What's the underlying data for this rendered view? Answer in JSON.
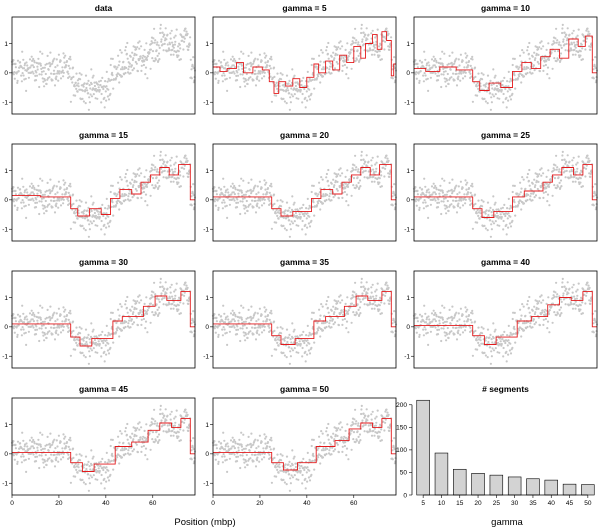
{
  "figure": {
    "xlabel_left": "Position (mbp)",
    "xlabel_right": "gamma"
  },
  "colors": {
    "points": "#c8c8c8",
    "segments": "#e41a1c",
    "bars": "#d3d3d3",
    "frame": "#000000"
  },
  "chart_data": [
    {
      "type": "scatter",
      "title": "data",
      "xlabel": "Position (mbp)",
      "xlim": [
        0,
        78
      ],
      "ylim": [
        -1.4,
        1.9
      ],
      "xticks": [
        0,
        20,
        40,
        60
      ],
      "yticks": [
        -1,
        0,
        1
      ],
      "grid": false,
      "profile": [
        {
          "x0": 0,
          "x1": 25,
          "y": 0.1
        },
        {
          "x0": 25,
          "x1": 30,
          "y": -0.3
        },
        {
          "x0": 30,
          "x1": 42,
          "y": -0.55
        },
        {
          "x0": 42,
          "x1": 46,
          "y": 0.05
        },
        {
          "x0": 46,
          "x1": 52,
          "y": 0.35
        },
        {
          "x0": 52,
          "x1": 58,
          "y": 0.5
        },
        {
          "x0": 58,
          "x1": 63,
          "y": 0.8
        },
        {
          "x0": 63,
          "x1": 67,
          "y": 1.15
        },
        {
          "x0": 67,
          "x1": 72,
          "y": 0.85
        },
        {
          "x0": 72,
          "x1": 76,
          "y": 1.2
        },
        {
          "x0": 76,
          "x1": 78,
          "y": 0.0
        }
      ],
      "point_spread": 0.3
    },
    {
      "type": "line",
      "title": "gamma = 5",
      "xlim": [
        0,
        78
      ],
      "ylim": [
        -1.4,
        1.9
      ],
      "xticks": [
        0,
        20,
        40,
        60
      ],
      "yticks": [
        -1,
        0,
        1
      ],
      "series_name": "segmentation",
      "segments": [
        {
          "x0": 0,
          "x1": 3,
          "y": 0.2
        },
        {
          "x0": 3,
          "x1": 6,
          "y": 0.05
        },
        {
          "x0": 6,
          "x1": 10,
          "y": 0.15
        },
        {
          "x0": 10,
          "x1": 13,
          "y": 0.35
        },
        {
          "x0": 13,
          "x1": 17,
          "y": 0.0
        },
        {
          "x0": 17,
          "x1": 21,
          "y": 0.2
        },
        {
          "x0": 21,
          "x1": 24,
          "y": 0.1
        },
        {
          "x0": 24,
          "x1": 26,
          "y": -0.3
        },
        {
          "x0": 26,
          "x1": 28,
          "y": -0.7
        },
        {
          "x0": 28,
          "x1": 31,
          "y": -0.3
        },
        {
          "x0": 31,
          "x1": 34,
          "y": -0.45
        },
        {
          "x0": 34,
          "x1": 37,
          "y": -0.2
        },
        {
          "x0": 37,
          "x1": 40,
          "y": -0.5
        },
        {
          "x0": 40,
          "x1": 43,
          "y": -0.15
        },
        {
          "x0": 43,
          "x1": 45,
          "y": 0.3
        },
        {
          "x0": 45,
          "x1": 48,
          "y": 0.0
        },
        {
          "x0": 48,
          "x1": 51,
          "y": 0.4
        },
        {
          "x0": 51,
          "x1": 54,
          "y": 0.1
        },
        {
          "x0": 54,
          "x1": 57,
          "y": 0.6
        },
        {
          "x0": 57,
          "x1": 60,
          "y": 0.35
        },
        {
          "x0": 60,
          "x1": 63,
          "y": 0.9
        },
        {
          "x0": 63,
          "x1": 65,
          "y": 0.5
        },
        {
          "x0": 65,
          "x1": 68,
          "y": 1.0
        },
        {
          "x0": 68,
          "x1": 70,
          "y": 1.3
        },
        {
          "x0": 70,
          "x1": 72,
          "y": 0.8
        },
        {
          "x0": 72,
          "x1": 74,
          "y": 1.4
        },
        {
          "x0": 74,
          "x1": 76,
          "y": 1.1
        },
        {
          "x0": 76,
          "x1": 77,
          "y": -0.1
        },
        {
          "x0": 77,
          "x1": 78,
          "y": 0.3
        }
      ]
    },
    {
      "type": "line",
      "title": "gamma = 10",
      "xlim": [
        0,
        78
      ],
      "ylim": [
        -1.4,
        1.9
      ],
      "xticks": [
        0,
        20,
        40,
        60
      ],
      "yticks": [
        -1,
        0,
        1
      ],
      "series_name": "segmentation",
      "segments": [
        {
          "x0": 0,
          "x1": 5,
          "y": 0.15
        },
        {
          "x0": 5,
          "x1": 11,
          "y": 0.05
        },
        {
          "x0": 11,
          "x1": 18,
          "y": 0.2
        },
        {
          "x0": 18,
          "x1": 25,
          "y": 0.1
        },
        {
          "x0": 25,
          "x1": 28,
          "y": -0.3
        },
        {
          "x0": 28,
          "x1": 32,
          "y": -0.6
        },
        {
          "x0": 32,
          "x1": 37,
          "y": -0.35
        },
        {
          "x0": 37,
          "x1": 42,
          "y": -0.5
        },
        {
          "x0": 42,
          "x1": 46,
          "y": 0.05
        },
        {
          "x0": 46,
          "x1": 50,
          "y": 0.35
        },
        {
          "x0": 50,
          "x1": 54,
          "y": 0.15
        },
        {
          "x0": 54,
          "x1": 58,
          "y": 0.55
        },
        {
          "x0": 58,
          "x1": 62,
          "y": 0.8
        },
        {
          "x0": 62,
          "x1": 66,
          "y": 0.5
        },
        {
          "x0": 66,
          "x1": 70,
          "y": 1.15
        },
        {
          "x0": 70,
          "x1": 73,
          "y": 0.9
        },
        {
          "x0": 73,
          "x1": 76,
          "y": 1.25
        },
        {
          "x0": 76,
          "x1": 78,
          "y": 0.0
        }
      ]
    },
    {
      "type": "line",
      "title": "gamma = 15",
      "xlim": [
        0,
        78
      ],
      "ylim": [
        -1.4,
        1.9
      ],
      "xticks": [
        0,
        20,
        40,
        60
      ],
      "yticks": [
        -1,
        0,
        1
      ],
      "series_name": "segmentation",
      "segments": [
        {
          "x0": 0,
          "x1": 12,
          "y": 0.15
        },
        {
          "x0": 12,
          "x1": 25,
          "y": 0.1
        },
        {
          "x0": 25,
          "x1": 28,
          "y": -0.3
        },
        {
          "x0": 28,
          "x1": 33,
          "y": -0.55
        },
        {
          "x0": 33,
          "x1": 38,
          "y": -0.3
        },
        {
          "x0": 38,
          "x1": 42,
          "y": -0.5
        },
        {
          "x0": 42,
          "x1": 46,
          "y": 0.05
        },
        {
          "x0": 46,
          "x1": 51,
          "y": 0.35
        },
        {
          "x0": 51,
          "x1": 55,
          "y": 0.2
        },
        {
          "x0": 55,
          "x1": 59,
          "y": 0.6
        },
        {
          "x0": 59,
          "x1": 63,
          "y": 0.85
        },
        {
          "x0": 63,
          "x1": 67,
          "y": 1.1
        },
        {
          "x0": 67,
          "x1": 71,
          "y": 0.85
        },
        {
          "x0": 71,
          "x1": 76,
          "y": 1.2
        },
        {
          "x0": 76,
          "x1": 78,
          "y": 0.0
        }
      ]
    },
    {
      "type": "line",
      "title": "gamma = 20",
      "xlim": [
        0,
        78
      ],
      "ylim": [
        -1.4,
        1.9
      ],
      "xticks": [
        0,
        20,
        40,
        60
      ],
      "yticks": [
        -1,
        0,
        1
      ],
      "series_name": "segmentation",
      "segments": [
        {
          "x0": 0,
          "x1": 25,
          "y": 0.1
        },
        {
          "x0": 25,
          "x1": 29,
          "y": -0.3
        },
        {
          "x0": 29,
          "x1": 34,
          "y": -0.55
        },
        {
          "x0": 34,
          "x1": 42,
          "y": -0.4
        },
        {
          "x0": 42,
          "x1": 46,
          "y": 0.05
        },
        {
          "x0": 46,
          "x1": 51,
          "y": 0.35
        },
        {
          "x0": 51,
          "x1": 55,
          "y": 0.2
        },
        {
          "x0": 55,
          "x1": 59,
          "y": 0.6
        },
        {
          "x0": 59,
          "x1": 63,
          "y": 0.85
        },
        {
          "x0": 63,
          "x1": 67,
          "y": 1.1
        },
        {
          "x0": 67,
          "x1": 71,
          "y": 0.85
        },
        {
          "x0": 71,
          "x1": 76,
          "y": 1.2
        },
        {
          "x0": 76,
          "x1": 78,
          "y": 0.0
        }
      ]
    },
    {
      "type": "line",
      "title": "gamma = 25",
      "xlim": [
        0,
        78
      ],
      "ylim": [
        -1.4,
        1.9
      ],
      "xticks": [
        0,
        20,
        40,
        60
      ],
      "yticks": [
        -1,
        0,
        1
      ],
      "series_name": "segmentation",
      "segments": [
        {
          "x0": 0,
          "x1": 25,
          "y": 0.1
        },
        {
          "x0": 25,
          "x1": 29,
          "y": -0.3
        },
        {
          "x0": 29,
          "x1": 34,
          "y": -0.6
        },
        {
          "x0": 34,
          "x1": 42,
          "y": -0.4
        },
        {
          "x0": 42,
          "x1": 47,
          "y": 0.1
        },
        {
          "x0": 47,
          "x1": 55,
          "y": 0.3
        },
        {
          "x0": 55,
          "x1": 59,
          "y": 0.6
        },
        {
          "x0": 59,
          "x1": 63,
          "y": 0.85
        },
        {
          "x0": 63,
          "x1": 68,
          "y": 1.1
        },
        {
          "x0": 68,
          "x1": 72,
          "y": 0.85
        },
        {
          "x0": 72,
          "x1": 76,
          "y": 1.2
        },
        {
          "x0": 76,
          "x1": 78,
          "y": 0.0
        }
      ]
    },
    {
      "type": "line",
      "title": "gamma = 30",
      "xlim": [
        0,
        78
      ],
      "ylim": [
        -1.4,
        1.9
      ],
      "xticks": [
        0,
        20,
        40,
        60
      ],
      "yticks": [
        -1,
        0,
        1
      ],
      "series_name": "segmentation",
      "segments": [
        {
          "x0": 0,
          "x1": 25,
          "y": 0.1
        },
        {
          "x0": 25,
          "x1": 29,
          "y": -0.35
        },
        {
          "x0": 29,
          "x1": 34,
          "y": -0.65
        },
        {
          "x0": 34,
          "x1": 43,
          "y": -0.4
        },
        {
          "x0": 43,
          "x1": 47,
          "y": 0.2
        },
        {
          "x0": 47,
          "x1": 56,
          "y": 0.35
        },
        {
          "x0": 56,
          "x1": 61,
          "y": 0.7
        },
        {
          "x0": 61,
          "x1": 66,
          "y": 1.05
        },
        {
          "x0": 66,
          "x1": 72,
          "y": 0.9
        },
        {
          "x0": 72,
          "x1": 76,
          "y": 1.2
        },
        {
          "x0": 76,
          "x1": 78,
          "y": 0.0
        }
      ]
    },
    {
      "type": "line",
      "title": "gamma = 35",
      "xlim": [
        0,
        78
      ],
      "ylim": [
        -1.4,
        1.9
      ],
      "xticks": [
        0,
        20,
        40,
        60
      ],
      "yticks": [
        -1,
        0,
        1
      ],
      "series_name": "segmentation",
      "segments": [
        {
          "x0": 0,
          "x1": 25,
          "y": 0.1
        },
        {
          "x0": 25,
          "x1": 29,
          "y": -0.3
        },
        {
          "x0": 29,
          "x1": 35,
          "y": -0.6
        },
        {
          "x0": 35,
          "x1": 43,
          "y": -0.4
        },
        {
          "x0": 43,
          "x1": 48,
          "y": 0.2
        },
        {
          "x0": 48,
          "x1": 56,
          "y": 0.35
        },
        {
          "x0": 56,
          "x1": 61,
          "y": 0.7
        },
        {
          "x0": 61,
          "x1": 66,
          "y": 1.05
        },
        {
          "x0": 66,
          "x1": 72,
          "y": 0.9
        },
        {
          "x0": 72,
          "x1": 76,
          "y": 1.2
        },
        {
          "x0": 76,
          "x1": 78,
          "y": 0.0
        }
      ]
    },
    {
      "type": "line",
      "title": "gamma = 40",
      "xlim": [
        0,
        78
      ],
      "ylim": [
        -1.4,
        1.9
      ],
      "xticks": [
        0,
        20,
        40,
        60
      ],
      "yticks": [
        -1,
        0,
        1
      ],
      "series_name": "segmentation",
      "segments": [
        {
          "x0": 0,
          "x1": 25,
          "y": 0.05
        },
        {
          "x0": 25,
          "x1": 30,
          "y": -0.3
        },
        {
          "x0": 30,
          "x1": 35,
          "y": -0.6
        },
        {
          "x0": 35,
          "x1": 44,
          "y": -0.35
        },
        {
          "x0": 44,
          "x1": 50,
          "y": 0.2
        },
        {
          "x0": 50,
          "x1": 57,
          "y": 0.35
        },
        {
          "x0": 57,
          "x1": 62,
          "y": 0.75
        },
        {
          "x0": 62,
          "x1": 67,
          "y": 1.0
        },
        {
          "x0": 67,
          "x1": 72,
          "y": 0.9
        },
        {
          "x0": 72,
          "x1": 76,
          "y": 1.2
        },
        {
          "x0": 76,
          "x1": 78,
          "y": 0.0
        }
      ]
    },
    {
      "type": "line",
      "title": "gamma = 45",
      "xlim": [
        0,
        78
      ],
      "ylim": [
        -1.4,
        1.9
      ],
      "xticks": [
        0,
        20,
        40,
        60
      ],
      "yticks": [
        -1,
        0,
        1
      ],
      "series_name": "segmentation",
      "segments": [
        {
          "x0": 0,
          "x1": 25,
          "y": 0.05
        },
        {
          "x0": 25,
          "x1": 30,
          "y": -0.3
        },
        {
          "x0": 30,
          "x1": 35,
          "y": -0.6
        },
        {
          "x0": 35,
          "x1": 44,
          "y": -0.35
        },
        {
          "x0": 44,
          "x1": 51,
          "y": 0.25
        },
        {
          "x0": 51,
          "x1": 58,
          "y": 0.4
        },
        {
          "x0": 58,
          "x1": 63,
          "y": 0.8
        },
        {
          "x0": 63,
          "x1": 68,
          "y": 1.05
        },
        {
          "x0": 68,
          "x1": 72,
          "y": 0.9
        },
        {
          "x0": 72,
          "x1": 76,
          "y": 1.2
        },
        {
          "x0": 76,
          "x1": 78,
          "y": 0.0
        }
      ]
    },
    {
      "type": "line",
      "title": "gamma = 50",
      "xlim": [
        0,
        78
      ],
      "ylim": [
        -1.4,
        1.9
      ],
      "xticks": [
        0,
        20,
        40,
        60
      ],
      "yticks": [
        -1,
        0,
        1
      ],
      "series_name": "segmentation",
      "segments": [
        {
          "x0": 0,
          "x1": 25,
          "y": 0.05
        },
        {
          "x0": 25,
          "x1": 30,
          "y": -0.3
        },
        {
          "x0": 30,
          "x1": 36,
          "y": -0.55
        },
        {
          "x0": 36,
          "x1": 44,
          "y": -0.3
        },
        {
          "x0": 44,
          "x1": 52,
          "y": 0.25
        },
        {
          "x0": 52,
          "x1": 58,
          "y": 0.45
        },
        {
          "x0": 58,
          "x1": 63,
          "y": 0.85
        },
        {
          "x0": 63,
          "x1": 68,
          "y": 1.05
        },
        {
          "x0": 68,
          "x1": 72,
          "y": 0.9
        },
        {
          "x0": 72,
          "x1": 76,
          "y": 1.2
        },
        {
          "x0": 76,
          "x1": 78,
          "y": 0.0
        }
      ]
    },
    {
      "type": "bar",
      "title": "# segments",
      "xlabel": "gamma",
      "ylabel": "",
      "categories": [
        "5",
        "10",
        "15",
        "20",
        "25",
        "30",
        "35",
        "40",
        "45",
        "50"
      ],
      "values": [
        210,
        93,
        57,
        48,
        44,
        40,
        36,
        33,
        24,
        23
      ],
      "ylim": [
        0,
        215
      ],
      "yticks": [
        0,
        50,
        100,
        150,
        200
      ]
    }
  ]
}
